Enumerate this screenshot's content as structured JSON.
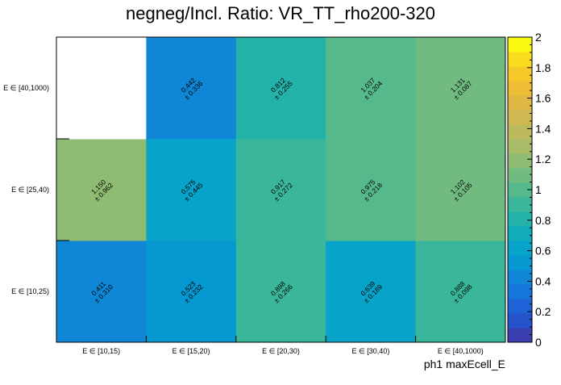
{
  "chart_data": {
    "type": "heatmap",
    "title": "negneg/Incl. Ratio: VR_TT_rho200-320",
    "xlabel": "ph1 maxEcell_E",
    "ylabel": "",
    "x_categories": [
      "E ∈ [10,15)",
      "E ∈ [15,20)",
      "E ∈ [20,30)",
      "E ∈ [30,40)",
      "E ∈ [40,1000)"
    ],
    "y_categories": [
      "E ∈ [10,25)",
      "E ∈ [25,40)",
      "E ∈ [40,1000)"
    ],
    "values": [
      [
        0.411,
        0.523,
        0.898,
        0.639,
        0.888
      ],
      [
        1.15,
        0.575,
        0.917,
        0.975,
        1.102
      ],
      [
        null,
        0.442,
        0.812,
        1.037,
        1.131
      ]
    ],
    "errors": [
      [
        0.31,
        0.232,
        0.266,
        0.189,
        0.098
      ],
      [
        0.962,
        0.445,
        0.272,
        0.218,
        0.105
      ],
      [
        null,
        0.336,
        0.255,
        0.204,
        0.087
      ]
    ],
    "value_labels": [
      [
        "0.411",
        "0.523",
        "0.898",
        "0.639",
        "0.888"
      ],
      [
        "1.150",
        "0.575",
        "0.917",
        "0.975",
        "1.102"
      ],
      [
        "",
        "0.442",
        "0.812",
        "1.037",
        "1.131"
      ]
    ],
    "error_labels": [
      [
        "± 0.310",
        "± 0.232",
        "± 0.266",
        "± 0.189",
        "± 0.098"
      ],
      [
        "± 0.962",
        "± 0.445",
        "± 0.272",
        "± 0.218",
        "± 0.105"
      ],
      [
        "",
        "± 0.336",
        "± 0.255",
        "± 0.204",
        "± 0.087"
      ]
    ],
    "zlim": [
      0,
      2
    ],
    "colorbar_ticks": [
      "0",
      "0.2",
      "0.4",
      "0.6",
      "0.8",
      "1",
      "1.2",
      "1.4",
      "1.6",
      "1.8",
      "2"
    ],
    "palette": [
      "#3a3eb1",
      "#2551c9",
      "#1f62d7",
      "#1675d8",
      "#0f87d6",
      "#0598d1",
      "#08a3c9",
      "#11acbb",
      "#23b2a9",
      "#3ab69a",
      "#56b98c",
      "#72bb80",
      "#8fbc73",
      "#a8bb67",
      "#bdb95c",
      "#cfb851",
      "#e0b944",
      "#edbd36",
      "#f6c92a",
      "#f9dc1d",
      "#f9f80f"
    ]
  }
}
